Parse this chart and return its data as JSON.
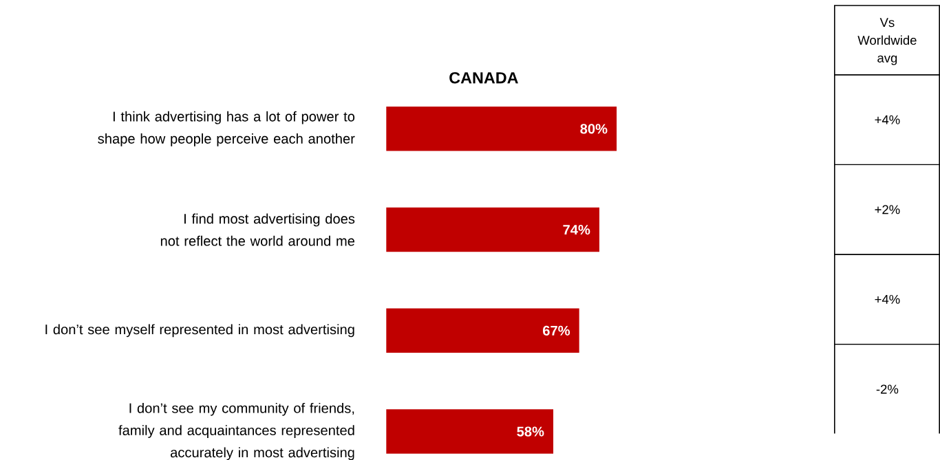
{
  "chart_data": [
    {
      "type": "bar",
      "orientation": "horizontal",
      "title": "CANADA",
      "categories": [
        "I think advertising has a lot of power to shape how people perceive each another",
        "I find most advertising does not reflect the world around me",
        "I don’t see myself represented in most advertising",
        "I don’t see my community of friends, family and acquaintances represented accurately in most advertising"
      ],
      "values": [
        80,
        74,
        67,
        58
      ],
      "color": "#c00000",
      "value_labels": [
        "80%",
        "74%",
        "67%",
        "58%"
      ]
    },
    {
      "type": "other",
      "title": "Vs Worldwide avg",
      "annotations": [
        "+4%",
        "+2%",
        "+4%",
        "-2%"
      ]
    }
  ]
}
